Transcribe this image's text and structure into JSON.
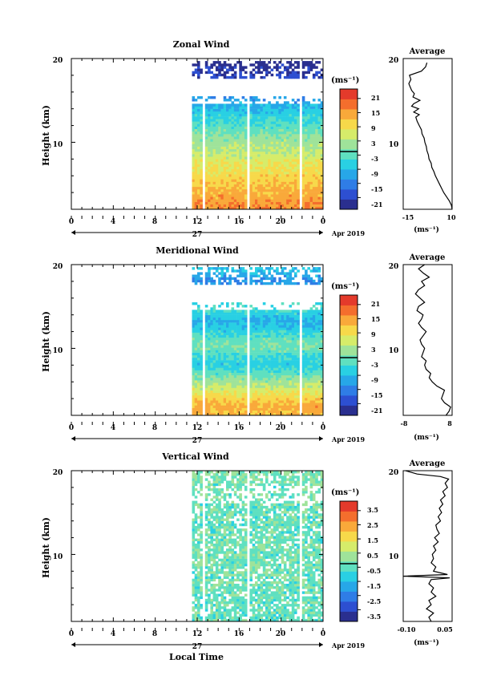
{
  "panels": [
    {
      "title": "Zonal Wind",
      "ylabel": "Height (km)",
      "yticks": [
        "20",
        "10"
      ],
      "xticks": [
        "0",
        "4",
        "8",
        "12",
        "16",
        "20",
        "0"
      ],
      "date_label": "27",
      "month_label": "Apr 2019",
      "colorbar_unit": "(ms⁻¹)",
      "colorbar_ticks": [
        "21",
        "15",
        "9",
        "3",
        "-3",
        "-9",
        "-15",
        "-21"
      ],
      "avg_title": "Average",
      "avg_yticks": [
        "20",
        "10"
      ],
      "avg_xticks": [
        "-15",
        "10"
      ],
      "avg_unit": "(ms⁻¹)"
    },
    {
      "title": "Meridional Wind",
      "ylabel": "Height (km)",
      "yticks": [
        "20",
        "10"
      ],
      "xticks": [
        "0",
        "4",
        "8",
        "12",
        "16",
        "20",
        "0"
      ],
      "date_label": "27",
      "month_label": "Apr 2019",
      "colorbar_unit": "(ms⁻¹)",
      "colorbar_ticks": [
        "21",
        "15",
        "9",
        "3",
        "-3",
        "-9",
        "-15",
        "-21"
      ],
      "avg_title": "Average",
      "avg_yticks": [
        "20",
        "10"
      ],
      "avg_xticks": [
        "-8",
        "8"
      ],
      "avg_unit": "(ms⁻¹)"
    },
    {
      "title": "Vertical Wind",
      "ylabel": "Height (km)",
      "yticks": [
        "20",
        "10"
      ],
      "xticks": [
        "0",
        "4",
        "8",
        "12",
        "16",
        "20",
        "0"
      ],
      "date_label": "27",
      "month_label": "Apr 2019",
      "colorbar_unit": "(ms⁻¹)",
      "colorbar_ticks": [
        "3.5",
        "2.5",
        "1.5",
        "0.5",
        "-0.5",
        "-1.5",
        "-2.5",
        "-3.5"
      ],
      "avg_title": "Average",
      "avg_yticks": [
        "20",
        "10"
      ],
      "avg_xticks": [
        "-0.10",
        "0.05"
      ],
      "avg_unit": "(ms⁻¹)"
    }
  ],
  "xlabel": "Local Time",
  "chart_data": [
    {
      "type": "heatmap",
      "title": "Zonal Wind",
      "xlabel": "",
      "ylabel": "Height (km)",
      "xlim": [
        0,
        24
      ],
      "ylim": [
        2,
        20
      ],
      "colorbar_range": [
        -24,
        24
      ],
      "data_start_hour": 11.5,
      "profile": [
        {
          "h": 2,
          "v": 16
        },
        {
          "h": 4,
          "v": 13
        },
        {
          "h": 6,
          "v": 10
        },
        {
          "h": 8,
          "v": 6
        },
        {
          "h": 10,
          "v": 2
        },
        {
          "h": 12,
          "v": -3
        },
        {
          "h": 14,
          "v": -8
        },
        {
          "h": 16,
          "v": -14
        },
        {
          "h": 18,
          "v": -20
        },
        {
          "h": 20,
          "v": -24
        }
      ],
      "avg_profile": {
        "xlim": [
          -25,
          10
        ],
        "heights": [
          2.0,
          2.5,
          3,
          3.5,
          4,
          4.5,
          5,
          5.5,
          6,
          6.5,
          7,
          7.5,
          8,
          8.5,
          9,
          9.5,
          10,
          10.5,
          11,
          11.5,
          12,
          12.5,
          13,
          13.3,
          13.6,
          14,
          14.3,
          14.6,
          15,
          15.4,
          15.8,
          16.2,
          16.6,
          17,
          17.5,
          18,
          18.5,
          19,
          19.5
        ],
        "values": [
          10,
          9.5,
          8,
          6,
          4,
          2.5,
          1,
          -0.5,
          -2,
          -3,
          -4.5,
          -5,
          -6.5,
          -7,
          -8,
          -8.5,
          -9.5,
          -10,
          -11.5,
          -12,
          -13.5,
          -15,
          -16,
          -13.5,
          -17.5,
          -14,
          -19,
          -17.5,
          -13,
          -18,
          -17,
          -19,
          -20,
          -21,
          -19.5,
          -20.5,
          -12,
          -9,
          -8
        ]
      }
    },
    {
      "type": "heatmap",
      "title": "Meridional Wind",
      "xlabel": "",
      "ylabel": "Height (km)",
      "xlim": [
        0,
        24
      ],
      "ylim": [
        2,
        20
      ],
      "colorbar_range": [
        -24,
        24
      ],
      "data_start_hour": 11.5,
      "profile": [
        {
          "h": 2,
          "v": 12
        },
        {
          "h": 3,
          "v": 14
        },
        {
          "h": 4,
          "v": 10
        },
        {
          "h": 5,
          "v": 6
        },
        {
          "h": 6,
          "v": 2
        },
        {
          "h": 7,
          "v": -3
        },
        {
          "h": 8,
          "v": -6
        },
        {
          "h": 9,
          "v": -4
        },
        {
          "h": 10,
          "v": 0
        },
        {
          "h": 11,
          "v": -2
        },
        {
          "h": 12,
          "v": -6
        },
        {
          "h": 13,
          "v": -9
        },
        {
          "h": 14,
          "v": -6
        },
        {
          "h": 15,
          "v": -3
        },
        {
          "h": 16,
          "v": -7
        },
        {
          "h": 17,
          "v": -10
        },
        {
          "h": 18,
          "v": -12
        },
        {
          "h": 19,
          "v": -8
        },
        {
          "h": 20,
          "v": -6
        }
      ],
      "avg_profile": {
        "xlim": [
          -8,
          8
        ],
        "heights": [
          2,
          2.5,
          3,
          3.5,
          4,
          4.5,
          5,
          5.5,
          6,
          6.5,
          7,
          7.5,
          8,
          8.5,
          9,
          9.5,
          10,
          10.5,
          11,
          11.5,
          12,
          12.5,
          13,
          13.5,
          14,
          14.5,
          15,
          15.5,
          16,
          16.5,
          17,
          17.5,
          18,
          18.5,
          19,
          19.5,
          20
        ],
        "values": [
          6,
          7,
          7.5,
          5.5,
          4.5,
          5,
          5.5,
          3,
          1.5,
          0.5,
          1,
          -0.5,
          -1,
          -0.5,
          -2,
          -1.5,
          -1,
          -2,
          -2.5,
          -1.5,
          -0.5,
          -2,
          -3,
          -2,
          -1.5,
          -3.5,
          -3,
          -1,
          -2.5,
          -4,
          -3,
          -1,
          -2,
          0.5,
          -1.5,
          -3,
          -1
        ]
      }
    },
    {
      "type": "heatmap",
      "title": "Vertical Wind",
      "xlabel": "Local Time",
      "ylabel": "Height (km)",
      "xlim": [
        0,
        24
      ],
      "ylim": [
        2,
        20
      ],
      "colorbar_range": [
        -4,
        4
      ],
      "data_start_hour": 11.5,
      "profile": [
        {
          "h": 2,
          "v": -0.3
        },
        {
          "h": 6,
          "v": -0.2
        },
        {
          "h": 10,
          "v": -0.1
        },
        {
          "h": 14,
          "v": -0.3
        },
        {
          "h": 18,
          "v": -0.1
        },
        {
          "h": 20,
          "v": 0.1
        }
      ],
      "avg_profile": {
        "xlim": [
          -0.14,
          0.07
        ],
        "heights": [
          2,
          2.5,
          3,
          3.5,
          4,
          4.5,
          5,
          5.5,
          6,
          6.5,
          7,
          7.2,
          7.4,
          7.6,
          8,
          8.5,
          9,
          9.5,
          10,
          10.5,
          11,
          11.5,
          12,
          12.5,
          13,
          13.5,
          14,
          14.5,
          15,
          15.5,
          16,
          16.5,
          17,
          17.5,
          18,
          18.5,
          19,
          19.3,
          19.6,
          20
        ],
        "values": [
          -0.02,
          -0.03,
          -0.01,
          -0.04,
          -0.02,
          -0.03,
          0.0,
          -0.02,
          -0.01,
          -0.03,
          -0.02,
          0.06,
          -0.14,
          0.05,
          -0.01,
          0.0,
          -0.02,
          -0.01,
          -0.015,
          0.0,
          -0.01,
          0.01,
          -0.005,
          0.015,
          0.005,
          0.0,
          0.02,
          0.01,
          0.025,
          0.015,
          0.03,
          0.02,
          0.04,
          0.03,
          0.05,
          0.04,
          0.055,
          0.02,
          -0.08,
          -0.13
        ]
      }
    }
  ]
}
